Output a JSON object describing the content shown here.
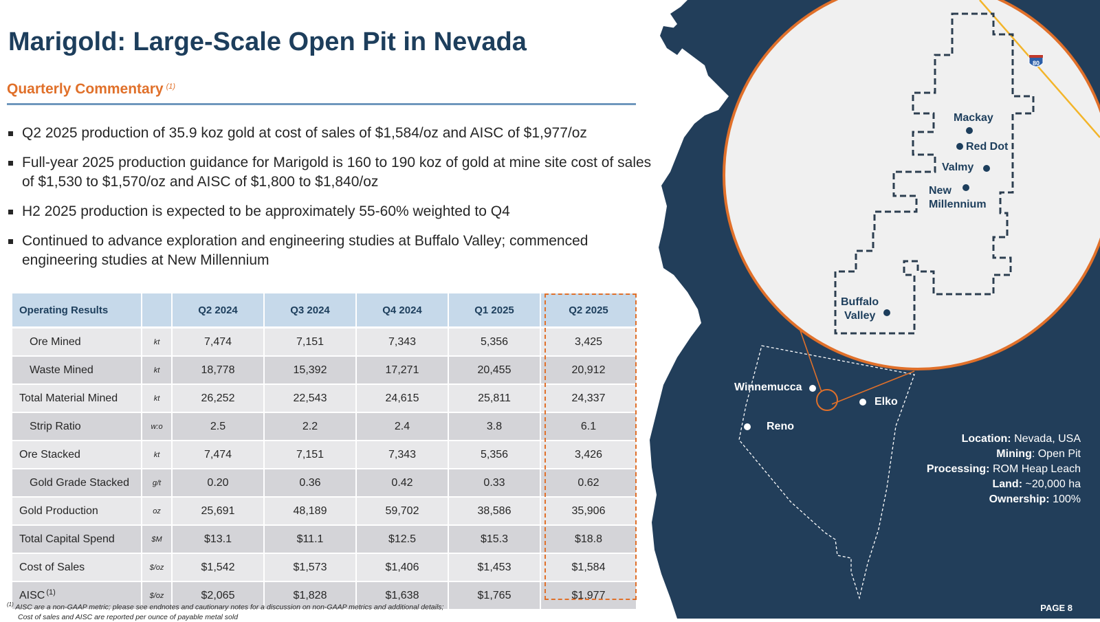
{
  "title": "Marigold: Large-Scale Open Pit in Nevada",
  "commentary": {
    "heading": "Quarterly Commentary",
    "footnote_ref": "(1)"
  },
  "bullets": [
    "Q2 2025 production of 35.9 koz gold at cost of sales of $1,584/oz and AISC of $1,977/oz",
    "Full-year 2025 production guidance for Marigold is 160 to 190 koz of gold at mine site cost of sales of $1,530 to $1,570/oz and AISC of $1,800 to $1,840/oz",
    "H2 2025 production is expected to be approximately 55-60% weighted to Q4",
    "Continued to advance exploration and engineering studies at Buffalo Valley; commenced engineering studies at New Millennium"
  ],
  "table": {
    "headers": [
      "Operating Results",
      "",
      "Q2 2024",
      "Q3 2024",
      "Q4 2024",
      "Q1 2025",
      "Q2 2025"
    ],
    "rows": [
      {
        "label": "Ore Mined",
        "unit": "kt",
        "values": [
          "7,474",
          "7,151",
          "7,343",
          "5,356",
          "3,425"
        ]
      },
      {
        "label": "Waste Mined",
        "unit": "kt",
        "values": [
          "18,778",
          "15,392",
          "17,271",
          "20,455",
          "20,912"
        ]
      },
      {
        "label": "Total Material Mined",
        "unit": "kt",
        "values": [
          "26,252",
          "22,543",
          "24,615",
          "25,811",
          "24,337"
        ]
      },
      {
        "label": "Strip Ratio",
        "unit": "w:o",
        "values": [
          "2.5",
          "2.2",
          "2.4",
          "3.8",
          "6.1"
        ]
      },
      {
        "label": "Ore Stacked",
        "unit": "kt",
        "values": [
          "7,474",
          "7,151",
          "7,343",
          "5,356",
          "3,426"
        ]
      },
      {
        "label": "Gold Grade Stacked",
        "unit": "g/t",
        "values": [
          "0.20",
          "0.36",
          "0.42",
          "0.33",
          "0.62"
        ]
      },
      {
        "label": "Gold Production",
        "unit": "oz",
        "values": [
          "25,691",
          "48,189",
          "59,702",
          "38,586",
          "35,906"
        ]
      },
      {
        "label": "Total Capital Spend",
        "unit": "$M",
        "values": [
          "$13.1",
          "$11.1",
          "$12.5",
          "$15.3",
          "$18.8"
        ]
      },
      {
        "label": "Cost of Sales",
        "unit": "$/oz",
        "values": [
          "$1,542",
          "$1,573",
          "$1,406",
          "$1,453",
          "$1,584"
        ]
      },
      {
        "label": "AISC",
        "label_sup": "(1)",
        "unit": "$/oz",
        "values": [
          "$2,065",
          "$1,828",
          "$1,638",
          "$1,765",
          "$1,977"
        ]
      }
    ]
  },
  "footnote": {
    "marker": "(1)",
    "line1": "AISC are a non-GAAP metric; please see endnotes and cautionary notes for a discussion on non-GAAP metrics and additional details;",
    "line2": "Cost of sales and AISC are reported per ounce of payable metal sold"
  },
  "map": {
    "cities": [
      "Winnemucca",
      "Elko",
      "Reno"
    ],
    "sites": [
      "Mackay",
      "Red Dot",
      "Valmy",
      "New",
      "Millennium",
      "Buffalo",
      "Valley"
    ],
    "highway": "80",
    "colors": {
      "land": "#223e5a",
      "accent": "#e0702a",
      "inset_bg": "#f0f0f0"
    }
  },
  "info": {
    "location_label": "Location:",
    "location": "Nevada, USA",
    "mining_label": "Mining",
    "mining": ": Open Pit",
    "processing_label": "Processing:",
    "processing": "ROM Heap Leach",
    "land_label": "Land:",
    "land": "~20,000 ha",
    "ownership_label": "Ownership:",
    "ownership": "100%"
  },
  "page": "PAGE 8"
}
